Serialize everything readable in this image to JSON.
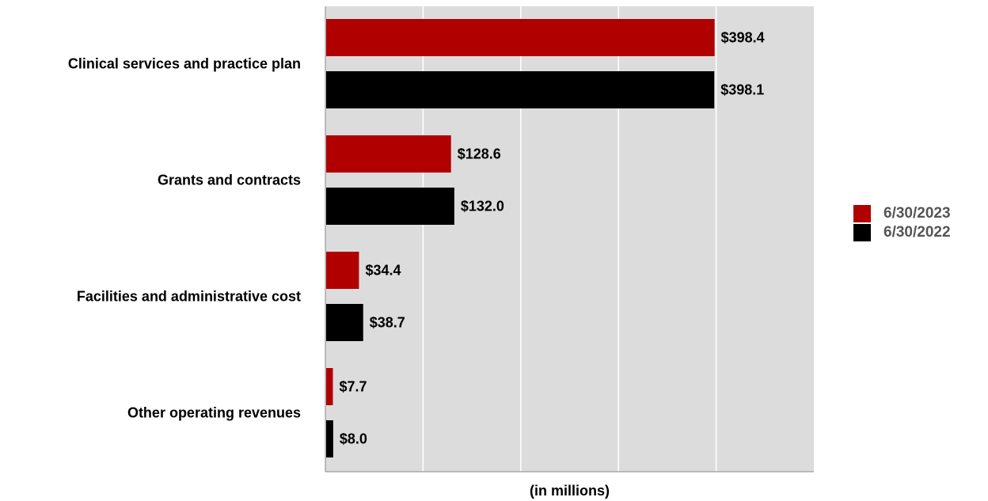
{
  "chart_data": {
    "type": "bar",
    "orientation": "horizontal",
    "categories": [
      "Clinical services and practice plan",
      "Grants and contracts",
      "Facilities and administrative cost",
      "Other operating revenues"
    ],
    "series": [
      {
        "name": "6/30/2023",
        "color": "#b00000",
        "values": [
          398.4,
          128.6,
          34.4,
          7.7
        ],
        "labels": [
          "$398.4",
          "$128.6",
          "$34.4",
          "$7.7"
        ]
      },
      {
        "name": "6/30/2022",
        "color": "#000000",
        "values": [
          398.1,
          132.0,
          38.7,
          8.0
        ],
        "labels": [
          "$398.1",
          "$132.0",
          "$38.7",
          "$8.0"
        ]
      }
    ],
    "xlabel": "(in millions)",
    "xlim": [
      0,
      500
    ],
    "grid": true,
    "legend_position": "right",
    "plot_background": "#dcdcdc"
  }
}
